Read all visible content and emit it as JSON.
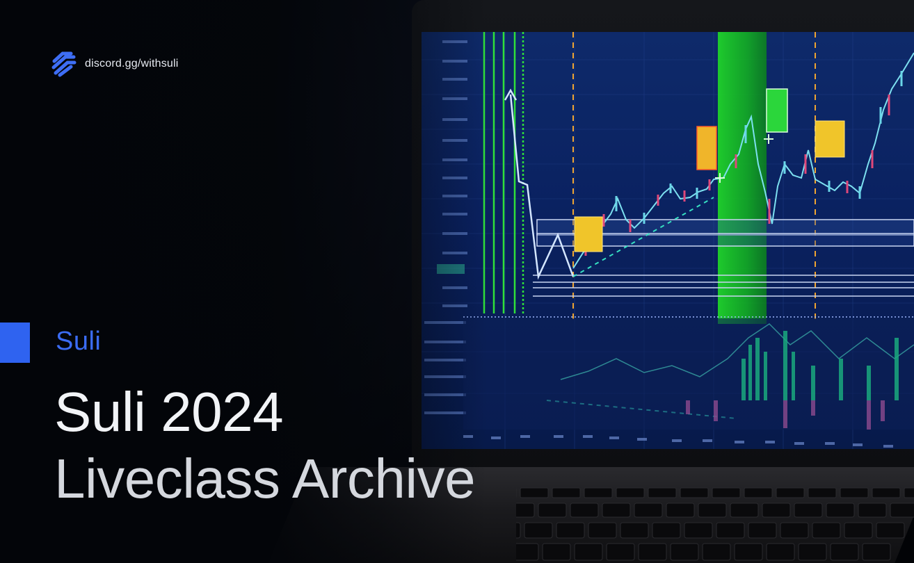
{
  "brand": {
    "icon": "stacked-wave-logo-icon",
    "handle": "discord.gg/withsuli",
    "accent_color": "#2f63f0"
  },
  "hero": {
    "eyebrow": "Suli",
    "title_line1": "Suli 2024",
    "title_line2": "Liveclass Archive"
  },
  "chart_scene": {
    "type": "line",
    "description": "",
    "colors": {
      "screen_bg": "#0a2160",
      "candle_up": "#6ad6e8",
      "candle_down": "#e0487a",
      "highlight_zone": "#22d02b",
      "marker_yellow": "#f0c52a",
      "marker_green": "#2bd63b"
    }
  }
}
